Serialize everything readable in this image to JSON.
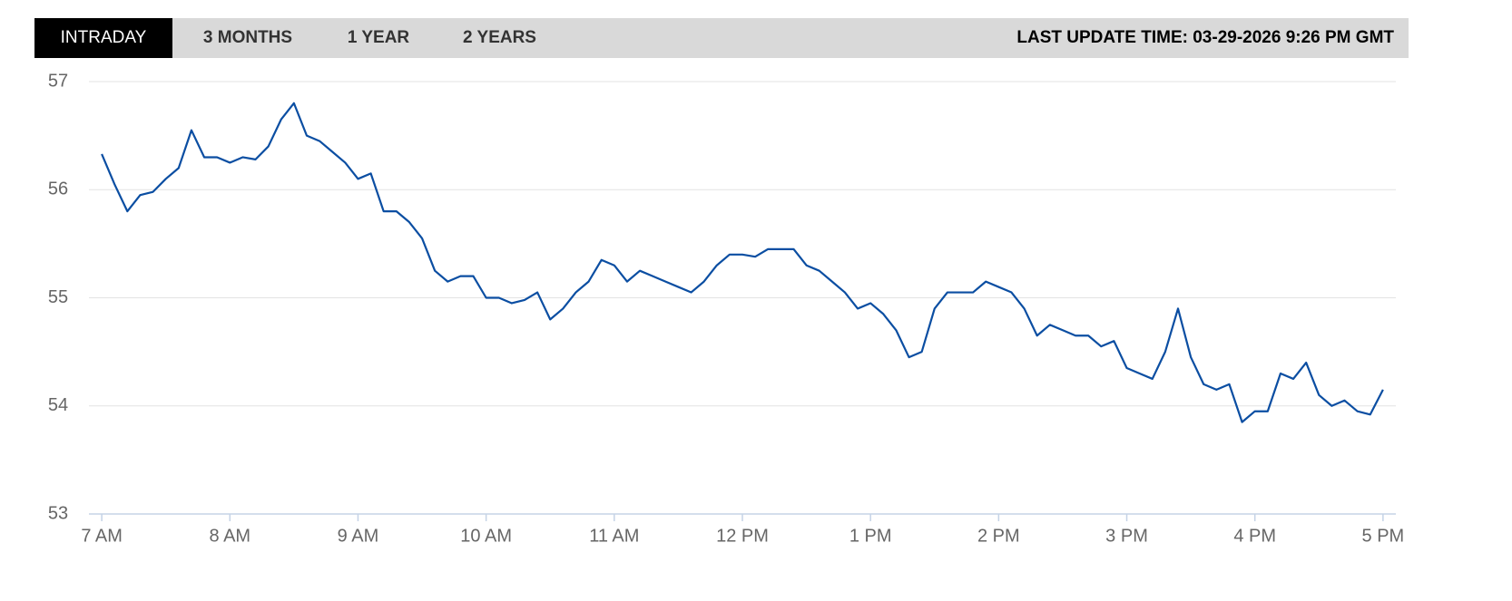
{
  "tabs": [
    "INTRADAY",
    "3 MONTHS",
    "1 YEAR",
    "2 YEARS"
  ],
  "active_tab": 0,
  "last_update": "LAST UPDATE TIME: 03-29-2026 9:26 PM GMT",
  "chart_data": {
    "type": "line",
    "x": [
      7.0,
      7.1,
      7.2,
      7.3,
      7.4,
      7.5,
      7.6,
      7.7,
      7.8,
      7.9,
      8.0,
      8.1,
      8.2,
      8.3,
      8.4,
      8.5,
      8.6,
      8.7,
      8.8,
      8.9,
      9.0,
      9.1,
      9.2,
      9.3,
      9.4,
      9.5,
      9.6,
      9.7,
      9.8,
      9.9,
      10.0,
      10.1,
      10.2,
      10.3,
      10.4,
      10.5,
      10.6,
      10.7,
      10.8,
      10.9,
      11.0,
      11.1,
      11.2,
      11.3,
      11.4,
      11.5,
      11.6,
      11.7,
      11.8,
      11.9,
      12.0,
      12.1,
      12.2,
      12.3,
      12.4,
      12.5,
      12.6,
      12.7,
      12.8,
      12.9,
      13.0,
      13.1,
      13.2,
      13.3,
      13.4,
      13.5,
      13.6,
      13.7,
      13.8,
      13.9,
      14.0,
      14.1,
      14.2,
      14.3,
      14.4,
      14.5,
      14.6,
      14.7,
      14.8,
      14.9,
      15.0,
      15.1,
      15.2,
      15.3,
      15.4,
      15.5,
      15.6,
      15.7,
      15.8,
      15.9,
      16.0,
      16.1,
      16.2,
      16.3,
      16.4,
      16.5,
      16.6,
      16.7,
      16.8,
      16.9,
      17.0
    ],
    "series": [
      {
        "color": "#0b4ea2",
        "values": [
          56.33,
          56.05,
          55.8,
          55.95,
          55.98,
          56.1,
          56.2,
          56.55,
          56.3,
          56.3,
          56.25,
          56.3,
          56.28,
          56.4,
          56.65,
          56.8,
          56.5,
          56.45,
          56.35,
          56.25,
          56.1,
          56.15,
          55.8,
          55.8,
          55.7,
          55.55,
          55.25,
          55.15,
          55.2,
          55.2,
          55.0,
          55.0,
          54.95,
          54.98,
          55.05,
          54.8,
          54.9,
          55.05,
          55.15,
          55.35,
          55.3,
          55.15,
          55.25,
          55.2,
          55.15,
          55.1,
          55.05,
          55.15,
          55.3,
          55.4,
          55.4,
          55.38,
          55.45,
          55.45,
          55.45,
          55.3,
          55.25,
          55.15,
          55.05,
          54.9,
          54.95,
          54.85,
          54.7,
          54.45,
          54.5,
          54.9,
          55.05,
          55.05,
          55.05,
          55.15,
          55.1,
          55.05,
          54.9,
          54.65,
          54.75,
          54.7,
          54.65,
          54.65,
          54.55,
          54.6,
          54.35,
          54.3,
          54.25,
          54.5,
          54.9,
          54.45,
          54.2,
          54.15,
          54.2,
          53.85,
          53.95,
          53.95,
          54.3,
          54.25,
          54.4,
          54.1,
          54.0,
          54.05,
          53.95,
          53.92,
          54.15
        ]
      }
    ],
    "xlim": [
      6.9,
      17.1
    ],
    "xticks": [
      {
        "value": 7,
        "label": "7 AM"
      },
      {
        "value": 8,
        "label": "8 AM"
      },
      {
        "value": 9,
        "label": "9 AM"
      },
      {
        "value": 10,
        "label": "10 AM"
      },
      {
        "value": 11,
        "label": "11 AM"
      },
      {
        "value": 12,
        "label": "12 PM"
      },
      {
        "value": 13,
        "label": "1 PM"
      },
      {
        "value": 14,
        "label": "2 PM"
      },
      {
        "value": 15,
        "label": "3 PM"
      },
      {
        "value": 16,
        "label": "4 PM"
      },
      {
        "value": 17,
        "label": "5 PM"
      }
    ],
    "ylim": [
      53,
      57
    ],
    "yticks": [
      53,
      54,
      55,
      56,
      57
    ],
    "grid": true
  }
}
